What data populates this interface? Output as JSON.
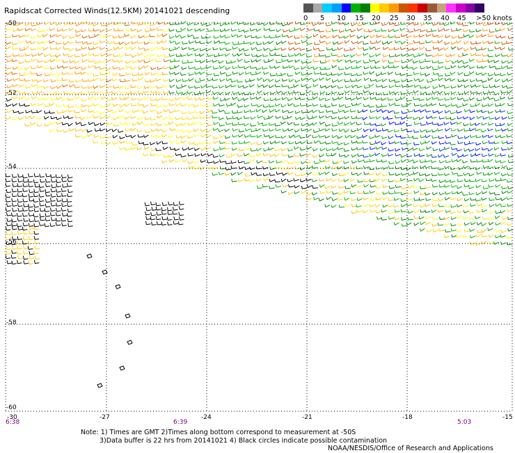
{
  "title": "Rapidscat Corrected Winds(12.5KM) 20141021 descending",
  "legend": {
    "colors": [
      "#545454",
      "#a8a8a8",
      "#00ccff",
      "#00a0ff",
      "#0000ff",
      "#00b000",
      "#008000",
      "#ffff00",
      "#ffcc00",
      "#ff9900",
      "#cc5500",
      "#ff3300",
      "#cc0000",
      "#9a5a3a",
      "#c8a080",
      "#ff33ff",
      "#cc00cc",
      "#8800aa",
      "#330066"
    ],
    "labels": [
      "0",
      "5",
      "10",
      "15",
      "20",
      "25",
      "30",
      "35",
      "40",
      "45",
      ">50 knots"
    ]
  },
  "axes": {
    "lat_labels": [
      "-50",
      "-52",
      "-54",
      "-56",
      "-58",
      "-60"
    ],
    "lon_labels": [
      "-30",
      "-27",
      "-24",
      "-21",
      "-18",
      "-15"
    ]
  },
  "times": [
    "6:38",
    "6:39",
    "5:03"
  ],
  "notes": [
    "Note: 1) Times are GMT 2)Times along bottom correspond to measurement at -50S",
    "3)Data buffer is 22 hrs from 20141021 4) Black circles indicate possible contamination",
    "NOAA/NESDIS/Office of Research and Applications"
  ]
}
